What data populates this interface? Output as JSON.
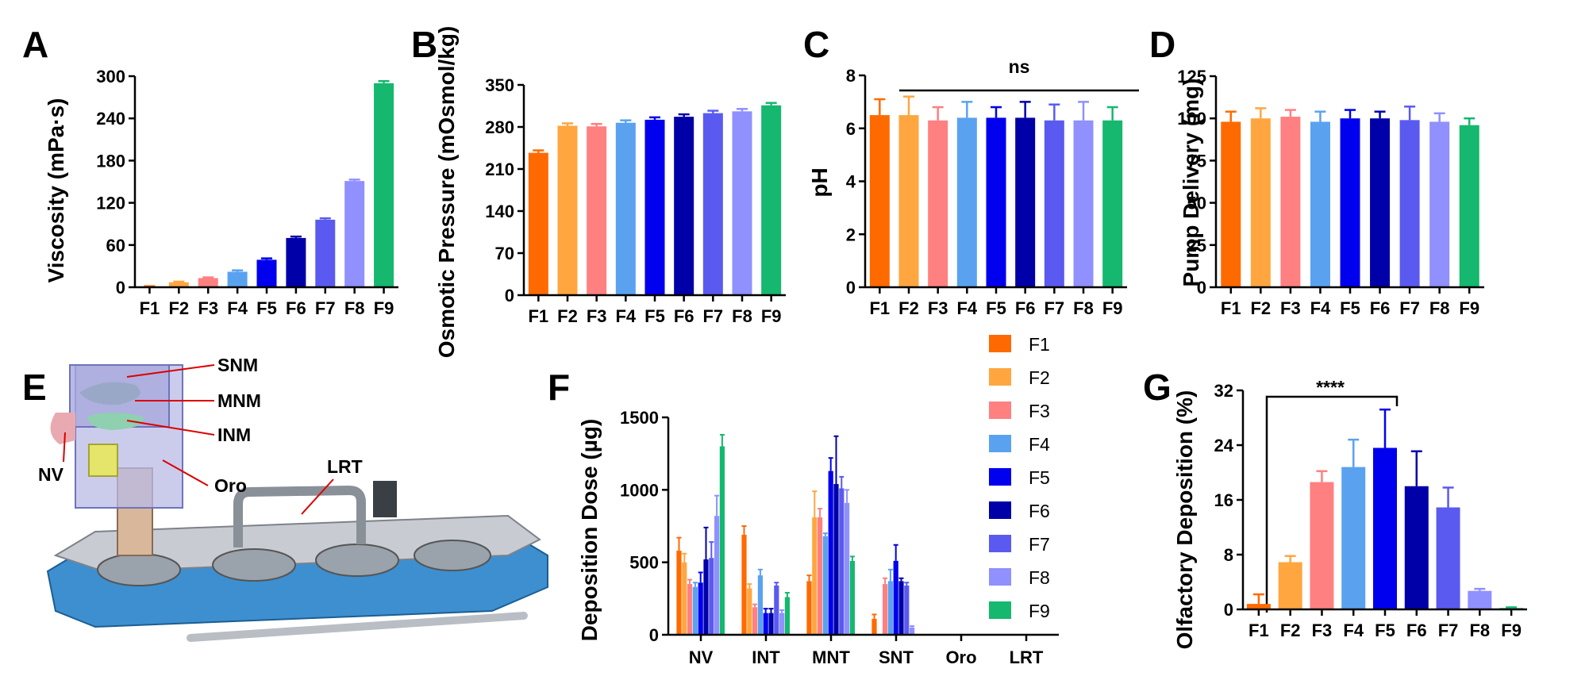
{
  "colors": {
    "F1": "#ff6a00",
    "F2": "#ffa640",
    "F3": "#ff8080",
    "F4": "#5aa2f0",
    "F5": "#0000ee",
    "F6": "#0000a8",
    "F7": "#5a5af0",
    "F8": "#9090ff",
    "F9": "#15b86e"
  },
  "legend": {
    "items": [
      "F1",
      "F2",
      "F3",
      "F4",
      "F5",
      "F6",
      "F7",
      "F8",
      "F9"
    ]
  },
  "panel_e": {
    "panel_label": "E",
    "labels": [
      "SNM",
      "MNM",
      "INM",
      "NV",
      "Oro",
      "LRT"
    ]
  },
  "chart_data": [
    {
      "panel_label": "A",
      "type": "bar",
      "categories": [
        "F1",
        "F2",
        "F3",
        "F4",
        "F5",
        "F6",
        "F7",
        "F8",
        "F9"
      ],
      "values": [
        1,
        7,
        13,
        22,
        39,
        70,
        96,
        151,
        290
      ],
      "errors": [
        0.5,
        1,
        1,
        2,
        2,
        2,
        2,
        2,
        3
      ],
      "title": "",
      "xlabel": "",
      "ylabel": "Viscosity (mPa·s)",
      "ylim": [
        0,
        300
      ],
      "yticks": [
        "0",
        "60",
        "120",
        "180",
        "240",
        "300"
      ],
      "grid": false
    },
    {
      "panel_label": "B",
      "type": "bar",
      "categories": [
        "F1",
        "F2",
        "F3",
        "F4",
        "F5",
        "F6",
        "F7",
        "F8",
        "F9"
      ],
      "values": [
        237,
        282,
        281,
        287,
        292,
        297,
        303,
        306,
        316
      ],
      "errors": [
        4,
        4,
        4,
        4,
        4,
        4,
        4,
        4,
        4
      ],
      "title": "",
      "xlabel": "",
      "ylabel": "Osmotic Pressure (mOsmol/kg)",
      "ylim": [
        0,
        350
      ],
      "yticks": [
        "0",
        "70",
        "140",
        "210",
        "280",
        "350"
      ],
      "grid": false
    },
    {
      "panel_label": "C",
      "type": "bar",
      "categories": [
        "F1",
        "F2",
        "F3",
        "F4",
        "F5",
        "F6",
        "F7",
        "F8",
        "F9"
      ],
      "values": [
        6.5,
        6.5,
        6.3,
        6.4,
        6.4,
        6.4,
        6.3,
        6.3,
        6.3
      ],
      "errors": [
        0.6,
        0.7,
        0.5,
        0.6,
        0.4,
        0.6,
        0.6,
        0.7,
        0.5
      ],
      "title": "",
      "xlabel": "",
      "ylabel": "pH",
      "ylim": [
        0,
        8
      ],
      "yticks": [
        "0",
        "2",
        "4",
        "6",
        "8"
      ],
      "annotation": "ns",
      "grid": false
    },
    {
      "panel_label": "D",
      "type": "bar",
      "categories": [
        "F1",
        "F2",
        "F3",
        "F4",
        "F5",
        "F6",
        "F7",
        "F8",
        "F9"
      ],
      "values": [
        98,
        100,
        101,
        98,
        100,
        100,
        99,
        98,
        96
      ],
      "errors": [
        6,
        6,
        4,
        6,
        5,
        4,
        8,
        5,
        4
      ],
      "title": "",
      "xlabel": "",
      "ylabel": "Pump Delivery (mg)",
      "ylim": [
        0,
        125
      ],
      "yticks": [
        "0",
        "25",
        "50",
        "75",
        "100",
        "125"
      ],
      "grid": false
    },
    {
      "panel_label": "F",
      "type": "bar",
      "categories": [
        "NV",
        "INT",
        "MNT",
        "SNT",
        "Oro",
        "LRT"
      ],
      "series": [
        {
          "name": "F1",
          "values": [
            580,
            690,
            370,
            110,
            0,
            0
          ],
          "errors": [
            90,
            60,
            40,
            30,
            0,
            0
          ]
        },
        {
          "name": "F2",
          "values": [
            500,
            320,
            810,
            0,
            0,
            0
          ],
          "errors": [
            60,
            30,
            180,
            0,
            0,
            0
          ]
        },
        {
          "name": "F3",
          "values": [
            350,
            190,
            810,
            350,
            0,
            0
          ],
          "errors": [
            30,
            20,
            60,
            40,
            0,
            0
          ]
        },
        {
          "name": "F4",
          "values": [
            330,
            410,
            680,
            370,
            0,
            0
          ],
          "errors": [
            30,
            40,
            20,
            80,
            0,
            0
          ]
        },
        {
          "name": "F5",
          "values": [
            360,
            150,
            1130,
            510,
            0,
            0
          ],
          "errors": [
            70,
            30,
            90,
            110,
            0,
            0
          ]
        },
        {
          "name": "F6",
          "values": [
            520,
            150,
            1040,
            370,
            0,
            0
          ],
          "errors": [
            220,
            30,
            330,
            20,
            0,
            0
          ]
        },
        {
          "name": "F7",
          "values": [
            530,
            340,
            1010,
            340,
            0,
            0
          ],
          "errors": [
            110,
            20,
            80,
            20,
            0,
            0
          ]
        },
        {
          "name": "F8",
          "values": [
            820,
            150,
            910,
            50,
            0,
            0
          ],
          "errors": [
            140,
            20,
            90,
            10,
            0,
            0
          ]
        },
        {
          "name": "F9",
          "values": [
            1300,
            260,
            510,
            0,
            0,
            0
          ],
          "errors": [
            80,
            30,
            30,
            0,
            0,
            0
          ]
        }
      ],
      "title": "",
      "xlabel": "",
      "ylabel": "Deposition Dose (µg)",
      "ylim": [
        0,
        1500
      ],
      "yticks": [
        "0",
        "500",
        "1000",
        "1500"
      ],
      "grid": false
    },
    {
      "panel_label": "G",
      "type": "bar",
      "categories": [
        "F1",
        "F2",
        "F3",
        "F4",
        "F5",
        "F6",
        "F7",
        "F8",
        "F9"
      ],
      "values": [
        0.8,
        6.9,
        18.6,
        20.8,
        23.6,
        18.0,
        14.9,
        2.7,
        0.2
      ],
      "errors": [
        1.4,
        0.9,
        1.6,
        4.0,
        5.6,
        5.1,
        2.9,
        0.3,
        0.1
      ],
      "title": "",
      "xlabel": "",
      "ylabel": "Olfactory Deposition (%)",
      "ylim": [
        0,
        32
      ],
      "yticks": [
        "0",
        "8",
        "16",
        "24",
        "32"
      ],
      "annotation": "****",
      "grid": false
    }
  ]
}
